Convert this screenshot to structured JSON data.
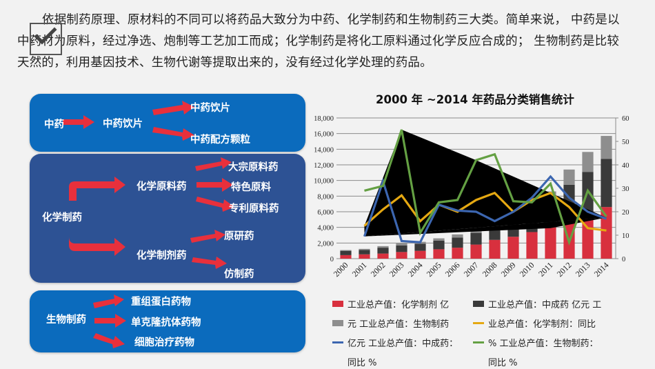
{
  "intro": {
    "line1": "依据制药原理、原材料的不同可以将药品大致分为中药、化学制药和生物制药三大类。简单来说，  中药是以",
    "line2": "中药材为原料，经过净选、炮制等工艺加工而成；化学制药是将化工原料通过化学反应合成的；  生物制药是比较",
    "line3": "天然的，利用基因技术、生物代谢等提取出来的，没有经过化学处理的药品。"
  },
  "panels": {
    "tcm": {
      "root": "中药",
      "mid": "中药饮片",
      "children": [
        "中药饮片",
        "中药配方颗粒"
      ]
    },
    "chemical": {
      "root": "化学制药",
      "branch1": "化学原料药",
      "branch1_children": [
        "大宗原料药",
        "特色原料",
        "专利原料药"
      ],
      "branch2": "化学制剂药",
      "branch2_children": [
        "原研药",
        "仿制药"
      ]
    },
    "bio": {
      "root": "生物制药",
      "children": [
        "重组蛋白药物",
        "单克隆抗体药物",
        "细胞治疗药物"
      ]
    }
  },
  "colors": {
    "panel_blue": "#0b6bbd",
    "panel_navy": "#2d5294",
    "arrow_red": "#e8303c",
    "bar_red": "#d8303e",
    "bar_dark": "#3a3a3a",
    "bar_gray": "#8e8e8e",
    "line_yellow": "#e5a812",
    "line_blue": "#3c66b0",
    "line_green": "#64a043"
  },
  "legend": {
    "item1": "工业总产值：化学制剂 亿",
    "item2": "工业总产值：中成药 亿元  工",
    "item3": "元  工业总产值：生物制药",
    "item4": "业总产值：化学制剂：同比",
    "item5": "亿元  工业总产值：中成药：",
    "item5b": "同比  %",
    "item6": "%   工业总产值：生物制药：",
    "item6b": "同比  %"
  },
  "chart_data": {
    "type": "bar",
    "title": "2000 年 ~2014 年药品分类销售统计",
    "categories": [
      "2000",
      "2001",
      "2002",
      "2003",
      "2004",
      "2005",
      "2006",
      "2007",
      "2008",
      "2009",
      "2010",
      "2011",
      "2012",
      "2013",
      "2014"
    ],
    "xlabel": "",
    "ylabel": "",
    "ylim": [
      0,
      18000
    ],
    "y2lim": [
      0,
      60
    ],
    "yticks": [
      "0",
      "2,000",
      "4,000",
      "6,000",
      "8,000",
      "10,000",
      "12,000",
      "14,000",
      "16,000",
      "18,000"
    ],
    "y2ticks": [
      "0",
      "10",
      "20",
      "30",
      "40",
      "50",
      "60"
    ],
    "grid": true,
    "legend_position": "bottom",
    "stacked": true,
    "series": [
      {
        "name": "工业总产值：化学制剂 亿元",
        "kind": "bar",
        "axis": "left",
        "values": [
          450,
          550,
          650,
          850,
          1000,
          1200,
          1400,
          1800,
          2400,
          2800,
          3400,
          4000,
          4700,
          5600,
          6600
        ]
      },
      {
        "name": "工业总产值：中成药 亿元",
        "kind": "bar",
        "axis": "left",
        "values": [
          550,
          550,
          750,
          850,
          900,
          1100,
          1300,
          1500,
          1700,
          2000,
          2400,
          3400,
          4750,
          5500,
          6150
        ]
      },
      {
        "name": "工业总产值：生物制药",
        "kind": "bar",
        "axis": "left",
        "values": [
          100,
          150,
          200,
          250,
          250,
          300,
          400,
          500,
          600,
          700,
          900,
          1200,
          1950,
          2550,
          2950
        ]
      },
      {
        "name": "工业总产值：化学制剂：同比 %",
        "kind": "line",
        "axis": "right",
        "values": [
          null,
          14,
          21,
          27,
          16,
          23,
          20,
          25,
          28,
          20,
          25,
          28,
          22,
          13,
          12
        ]
      },
      {
        "name": "工业总产值：中成药：同比 %",
        "kind": "line",
        "axis": "right",
        "values": [
          null,
          9.5,
          33,
          7.5,
          7,
          23,
          20.5,
          20,
          16,
          20,
          26,
          35,
          26,
          20,
          17
        ]
      },
      {
        "name": "工业总产值：生物制药：同比 %",
        "kind": "line",
        "axis": "right",
        "values": [
          null,
          29,
          31,
          55,
          11,
          24,
          25,
          42,
          44.5,
          24.5,
          24,
          32,
          7,
          29,
          18
        ]
      }
    ]
  }
}
